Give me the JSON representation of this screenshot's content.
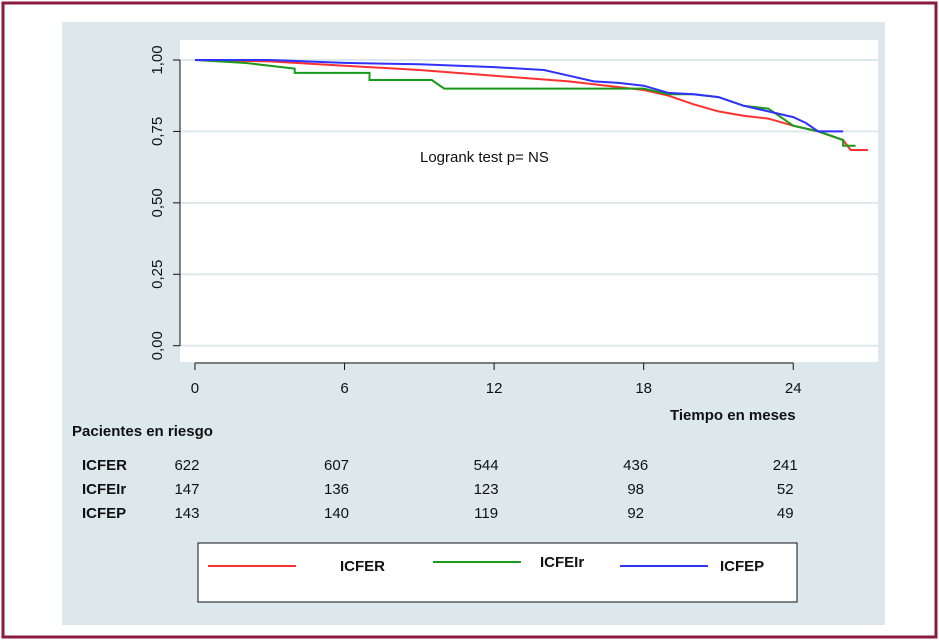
{
  "chart_data": {
    "type": "line",
    "annotation": "Logrank test    p= NS",
    "xlabel": "Tiempo en meses",
    "xlim": [
      -0.6,
      27.4
    ],
    "ylim": [
      -0.05,
      1.07
    ],
    "xticks": [
      0,
      6,
      12,
      18,
      24
    ],
    "yticks": [
      {
        "value": 0,
        "label": "0,00"
      },
      {
        "value": 0.25,
        "label": "0,25"
      },
      {
        "value": 0.5,
        "label": "0,50"
      },
      {
        "value": 0.75,
        "label": "0,75"
      },
      {
        "value": 1,
        "label": "1,00"
      }
    ],
    "grid": true,
    "series": [
      {
        "name": "ICFER",
        "color": "#ff3030",
        "x": [
          0,
          3,
          6,
          9,
          12,
          15,
          16,
          18,
          19,
          20,
          21,
          22,
          23,
          24,
          25,
          26,
          26.3,
          27
        ],
        "values": [
          1,
          0.995,
          0.98,
          0.965,
          0.945,
          0.925,
          0.915,
          0.895,
          0.875,
          0.845,
          0.82,
          0.805,
          0.795,
          0.77,
          0.75,
          0.72,
          0.685,
          0.685
        ]
      },
      {
        "name": "ICFEIr",
        "color": "#1a9a1a",
        "x": [
          0,
          2,
          3,
          4,
          4,
          6,
          7,
          7,
          9.5,
          10,
          18,
          18.5,
          19,
          20,
          21,
          22,
          23,
          23.5,
          24,
          25,
          26,
          26,
          26.5
        ],
        "values": [
          1,
          0.99,
          0.98,
          0.97,
          0.955,
          0.955,
          0.955,
          0.93,
          0.93,
          0.9,
          0.9,
          0.89,
          0.88,
          0.88,
          0.87,
          0.84,
          0.83,
          0.8,
          0.77,
          0.75,
          0.72,
          0.7,
          0.7
        ]
      },
      {
        "name": "ICFEP",
        "color": "#3030ff",
        "x": [
          0,
          3,
          6,
          9,
          12,
          14,
          15,
          16,
          17,
          18,
          19,
          20,
          21,
          22,
          23,
          24,
          24.5,
          25,
          26
        ],
        "values": [
          1,
          1,
          0.99,
          0.985,
          0.975,
          0.965,
          0.945,
          0.925,
          0.92,
          0.91,
          0.885,
          0.88,
          0.87,
          0.84,
          0.82,
          0.8,
          0.78,
          0.75,
          0.75
        ]
      }
    ],
    "risk_table": {
      "title": "Pacientes en riesgo",
      "rows": [
        {
          "name": "ICFER",
          "values": [
            622,
            607,
            544,
            436,
            241
          ]
        },
        {
          "name": "ICFEIr",
          "values": [
            147,
            136,
            123,
            98,
            52
          ]
        },
        {
          "name": "ICFEP",
          "values": [
            143,
            140,
            119,
            92,
            49
          ]
        }
      ]
    }
  }
}
